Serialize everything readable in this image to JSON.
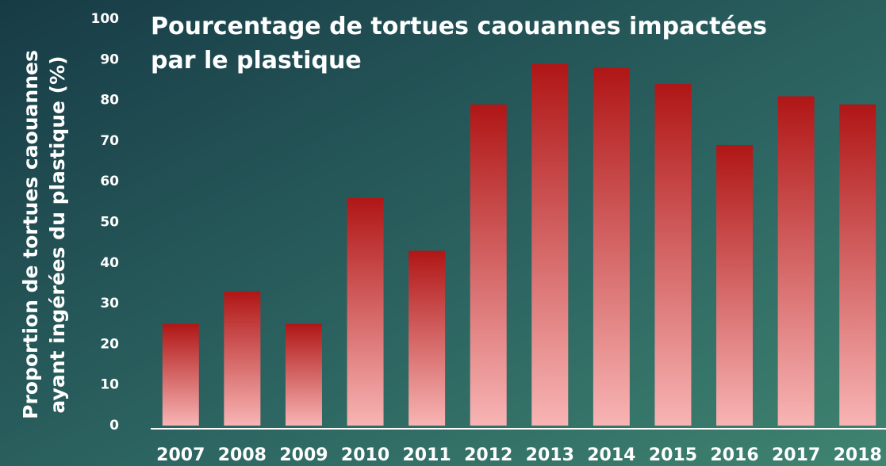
{
  "chart_data": {
    "type": "bar",
    "title": [
      "Pourcentage de tortues caouannes impactées",
      "par le plastique"
    ],
    "y_label": [
      "Proportion de tortues caouannes",
      "ayant ingérées du plastique (%)"
    ],
    "categories": [
      "2007",
      "2008",
      "2009",
      "2010",
      "2011",
      "2012",
      "2013",
      "2014",
      "2015",
      "2016",
      "2017",
      "2018"
    ],
    "values": [
      25,
      33,
      25,
      56,
      43,
      79,
      89,
      88,
      84,
      69,
      81,
      79
    ],
    "color": [
      "#b01616",
      "#f8b4b4"
    ],
    "ylim": [
      0,
      100
    ],
    "yticks": [
      0,
      10,
      20,
      30,
      40,
      50,
      60,
      70,
      80,
      90,
      100
    ],
    "grid": false
  }
}
